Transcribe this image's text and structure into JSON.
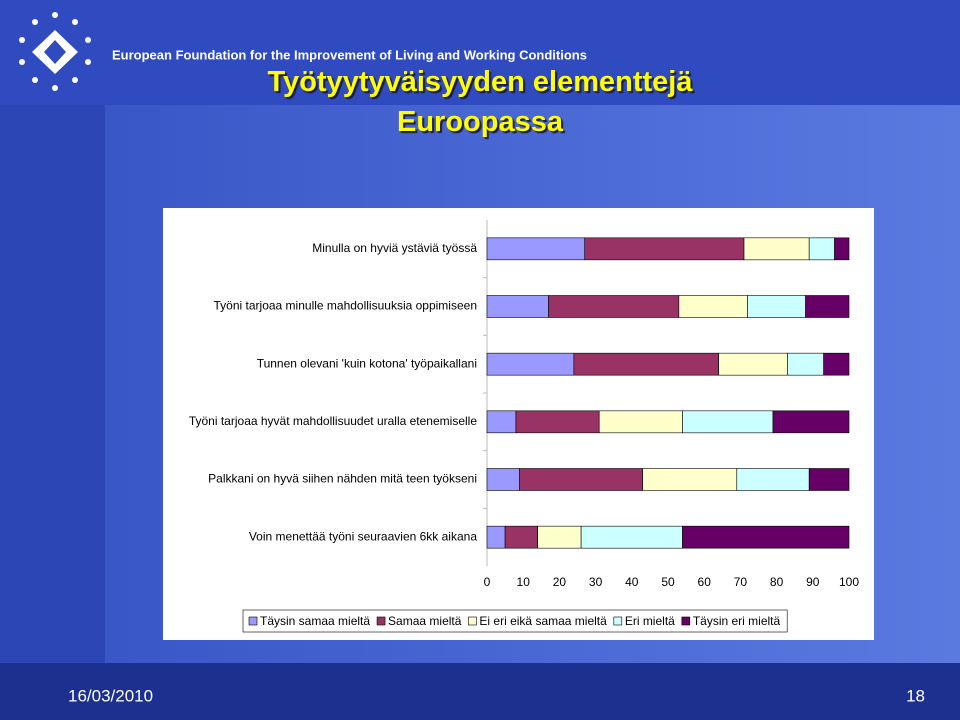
{
  "header": {
    "organization": "European Foundation for the Improvement of Living and Working Conditions"
  },
  "slide_title": [
    "Työtyytyväisyyden elementtejä",
    "Euroopassa"
  ],
  "chart_data": {
    "type": "stacked-bar-horizontal",
    "categories": [
      "Minulla on hyviä ystäviä työssä",
      "Työni tarjoaa minulle mahdollisuuksia oppimiseen",
      "Tunnen olevani 'kuin kotona' työpaikallani",
      "Työni tarjoaa hyvät mahdollisuudet uralla etenemiselle",
      "Palkkani on hyvä siihen nähden mitä teen työkseni",
      "Voin menettää työni seuraavien 6kk aikana"
    ],
    "series": [
      {
        "name": "Täysin samaa mieltä",
        "color": "#9999ff",
        "values": [
          27,
          17,
          24,
          8,
          9,
          5
        ]
      },
      {
        "name": "Samaa mieltä",
        "color": "#993366",
        "values": [
          44,
          36,
          40,
          23,
          34,
          9
        ]
      },
      {
        "name": "Ei eri eikä samaa mieltä",
        "color": "#ffffcc",
        "values": [
          18,
          19,
          19,
          23,
          26,
          12
        ]
      },
      {
        "name": "Eri mieltä",
        "color": "#ccffff",
        "values": [
          7,
          16,
          10,
          25,
          20,
          28
        ]
      },
      {
        "name": "Täysin eri mieltä",
        "color": "#660066",
        "values": [
          4,
          12,
          7,
          21,
          11,
          46
        ]
      }
    ],
    "xlim": [
      0,
      100
    ],
    "xticks": [
      0,
      10,
      20,
      30,
      40,
      50,
      60,
      70,
      80,
      90,
      100
    ],
    "grid": false,
    "legend": "bottom"
  },
  "footer": {
    "date": "16/03/2010",
    "page": "18"
  }
}
